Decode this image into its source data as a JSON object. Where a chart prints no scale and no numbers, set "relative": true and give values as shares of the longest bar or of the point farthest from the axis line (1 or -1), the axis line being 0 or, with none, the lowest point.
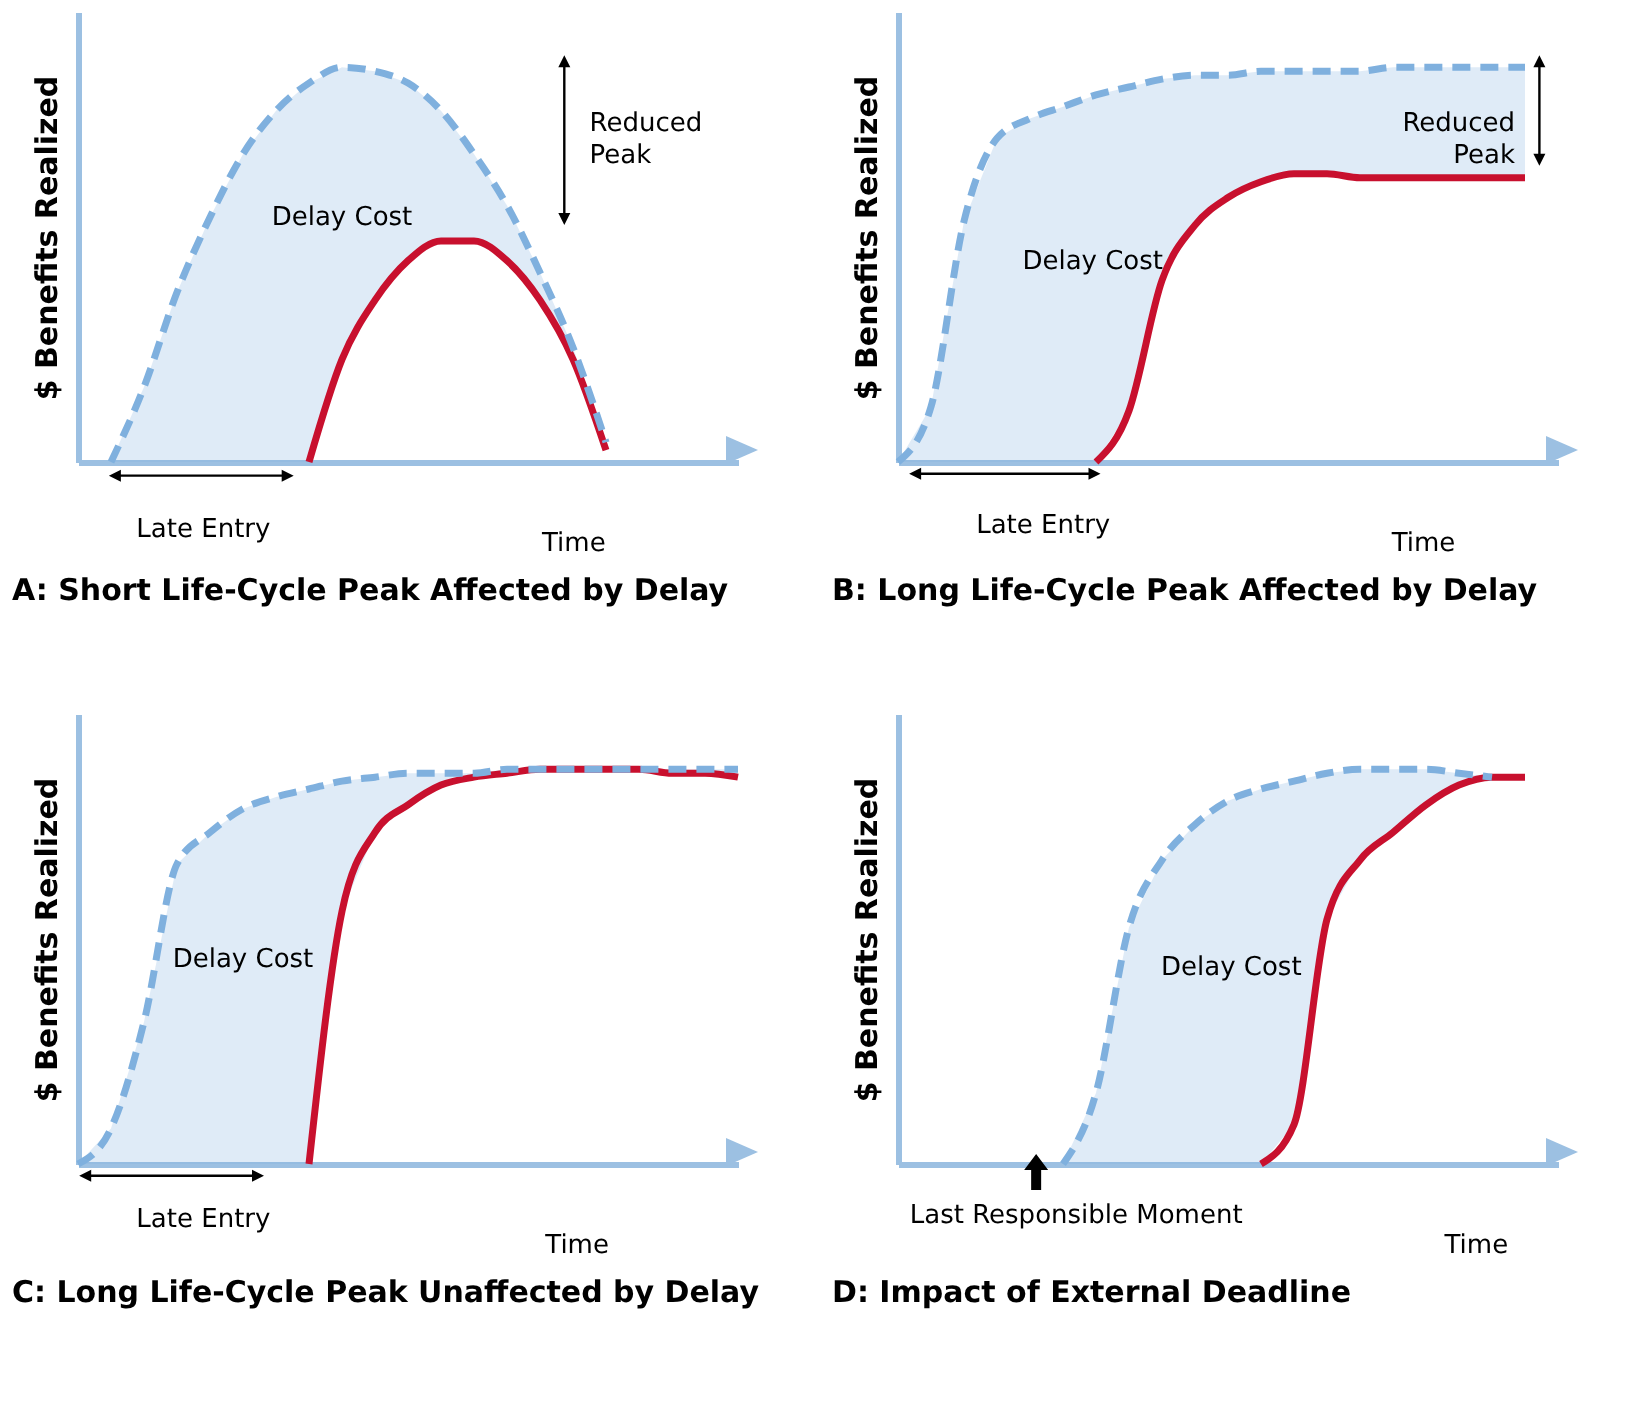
{
  "chart_data": [
    {
      "type": "line",
      "title": "A: Short Life-Cycle Peak Affected by Delay",
      "xlabel": "Time",
      "ylabel": "$ Benefits Realized",
      "annotations": [
        "Delay Cost",
        "Reduced Peak",
        "Late Entry"
      ],
      "relative": true,
      "categories": [
        null,
        null,
        null,
        null,
        null,
        null,
        null,
        null,
        null,
        null,
        null,
        null,
        null,
        null,
        null,
        null,
        null,
        null,
        null,
        null,
        null
      ],
      "series": [
        {
          "color": "#7fb0de",
          "line_style": "dashed",
          "values": [
            null,
            0,
            0.19,
            0.43,
            0.62,
            0.78,
            0.89,
            0.96,
            1.0,
            0.99,
            0.96,
            0.89,
            0.78,
            0.65,
            0.48,
            0.29,
            0.05,
            null,
            null,
            null,
            null
          ],
          "upper": [
            null,
            0,
            0.19,
            0.43,
            0.62,
            0.78,
            0.89,
            0.96,
            1.0,
            0.99,
            0.96,
            0.89,
            0.78,
            0.65,
            0.48,
            0.29,
            0.05,
            null,
            null,
            null,
            null
          ],
          "lower": [
            null,
            0,
            0,
            0,
            0,
            0,
            0,
            0,
            0.26,
            0.41,
            0.51,
            0.56,
            0.56,
            0.51,
            0.41,
            0.26,
            0.03,
            null,
            null,
            null,
            null
          ]
        },
        {
          "color": "#c8102e",
          "line_style": "solid",
          "values": [
            null,
            null,
            null,
            null,
            null,
            null,
            null,
            0,
            0.26,
            0.41,
            0.51,
            0.56,
            0.56,
            0.51,
            0.41,
            0.26,
            0.03,
            null,
            null,
            null,
            null
          ]
        }
      ]
    },
    {
      "type": "line",
      "title": "B: Long Life-Cycle Peak Affected by Delay",
      "xlabel": "Time",
      "ylabel": "$ Benefits Realized",
      "annotations": [
        "Delay Cost",
        "Reduced Peak",
        "Late Entry"
      ],
      "relative": true,
      "categories": [
        null,
        null,
        null,
        null,
        null,
        null,
        null,
        null,
        null,
        null,
        null,
        null,
        null,
        null,
        null,
        null,
        null,
        null,
        null,
        null,
        null
      ],
      "series": [
        {
          "color": "#7fb0de",
          "line_style": "dashed",
          "values": [
            0,
            0.14,
            0.61,
            0.82,
            0.87,
            0.9,
            0.93,
            0.95,
            0.97,
            0.98,
            0.98,
            0.99,
            0.99,
            0.99,
            0.99,
            1.0,
            1.0,
            1.0,
            1.0,
            1.0,
            null
          ],
          "upper": [
            0,
            0.14,
            0.61,
            0.82,
            0.87,
            0.9,
            0.93,
            0.95,
            0.97,
            0.98,
            0.98,
            0.99,
            0.99,
            0.99,
            0.99,
            1.0,
            1.0,
            1.0,
            1.0,
            1.0,
            null
          ],
          "lower": [
            0,
            0,
            0,
            0,
            0,
            0,
            0,
            0.13,
            0.46,
            0.6,
            0.67,
            0.71,
            0.73,
            0.73,
            0.72,
            0.72,
            0.72,
            0.72,
            0.72,
            0.72,
            null
          ]
        },
        {
          "color": "#c8102e",
          "line_style": "solid",
          "values": [
            null,
            null,
            null,
            null,
            null,
            null,
            0,
            0.13,
            0.46,
            0.6,
            0.67,
            0.71,
            0.73,
            0.73,
            0.72,
            0.72,
            0.72,
            0.72,
            0.72,
            0.72,
            null
          ]
        }
      ]
    },
    {
      "type": "line",
      "title": "C: Long Life-Cycle Peak Unaffected by Delay",
      "xlabel": "Time",
      "ylabel": "$ Benefits Realized",
      "annotations": [
        "Delay Cost",
        "Late Entry"
      ],
      "relative": true,
      "categories": [
        null,
        null,
        null,
        null,
        null,
        null,
        null,
        null,
        null,
        null,
        null,
        null,
        null,
        null,
        null,
        null,
        null,
        null,
        null,
        null,
        null
      ],
      "series": [
        {
          "color": "#7fb0de",
          "line_style": "dashed",
          "values": [
            0,
            0.09,
            0.36,
            0.76,
            0.84,
            0.9,
            0.93,
            0.95,
            0.97,
            0.98,
            0.99,
            0.99,
            0.99,
            1.0,
            1.0,
            1.0,
            1.0,
            1.0,
            1.0,
            1.0,
            1.0
          ],
          "upper": [
            0,
            0.09,
            0.36,
            0.76,
            0.84,
            0.9,
            0.93,
            0.95,
            0.97,
            0.98,
            0.99,
            0.99,
            0.99,
            1.0,
            1.0,
            1.0,
            1.0,
            1.0,
            1.0,
            1.0,
            1.0
          ],
          "lower": [
            0,
            0,
            0,
            0,
            0,
            0,
            0,
            0,
            0.64,
            0.84,
            0.91,
            0.96,
            0.98,
            0.99,
            1.0,
            1.0,
            1.0,
            1.0,
            0.99,
            0.99,
            0.98
          ]
        },
        {
          "color": "#c8102e",
          "line_style": "solid",
          "values": [
            null,
            null,
            null,
            null,
            null,
            null,
            null,
            0,
            0.64,
            0.84,
            0.91,
            0.96,
            0.98,
            0.99,
            1.0,
            1.0,
            1.0,
            1.0,
            0.99,
            0.99,
            0.98
          ]
        }
      ]
    },
    {
      "type": "line",
      "title": "D: Impact of External Deadline",
      "xlabel": "Time",
      "ylabel": "$ Benefits Realized",
      "annotations": [
        "Delay Cost",
        "Last Responsible Moment"
      ],
      "relative": true,
      "categories": [
        null,
        null,
        null,
        null,
        null,
        null,
        null,
        null,
        null,
        null,
        null,
        null,
        null,
        null,
        null,
        null,
        null,
        null,
        null,
        null,
        null
      ],
      "series": [
        {
          "color": "#7fb0de",
          "line_style": "dashed",
          "values": [
            null,
            null,
            null,
            null,
            null,
            0,
            0.18,
            0.6,
            0.77,
            0.86,
            0.92,
            0.95,
            0.97,
            0.99,
            1.0,
            1.0,
            1.0,
            0.99,
            0.98,
            null,
            null
          ],
          "upper": [
            null,
            null,
            null,
            null,
            null,
            0,
            0.18,
            0.6,
            0.77,
            0.86,
            0.92,
            0.95,
            0.97,
            0.99,
            1.0,
            1.0,
            1.0,
            0.99,
            0.98,
            null,
            null
          ],
          "lower": [
            null,
            null,
            null,
            null,
            null,
            0,
            0,
            0,
            0,
            0,
            0,
            0,
            0.1,
            0.62,
            0.77,
            0.84,
            0.91,
            0.96,
            0.98,
            null,
            null
          ]
        },
        {
          "color": "#c8102e",
          "line_style": "solid",
          "values": [
            null,
            null,
            null,
            null,
            null,
            null,
            null,
            null,
            null,
            null,
            null,
            0,
            0.1,
            0.62,
            0.77,
            0.84,
            0.91,
            0.96,
            0.98,
            0.98,
            null
          ]
        }
      ]
    }
  ]
}
